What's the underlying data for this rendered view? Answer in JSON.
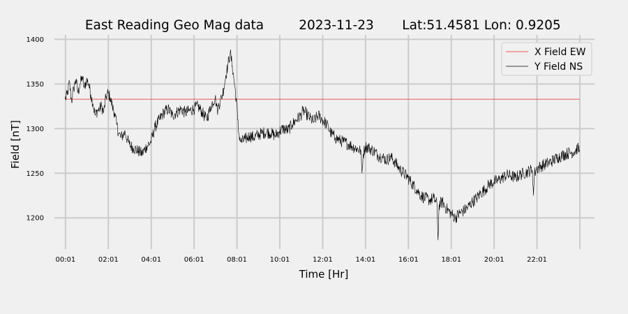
{
  "chart_data": {
    "type": "line",
    "title_parts": [
      "East Reading Geo Mag data",
      "2023-11-23",
      "Lat:51.4581  Lon: 0.9205"
    ],
    "xlabel": "Time  [Hr]",
    "ylabel": "Field  [nT]",
    "x_unit": "hours since 00:00",
    "xlim": [
      -0.5,
      24.7
    ],
    "ylim": [
      1165,
      1405
    ],
    "x_ticks": [
      {
        "x": 0.0167,
        "label": "00:01"
      },
      {
        "x": 2.0167,
        "label": "02:01"
      },
      {
        "x": 4.0167,
        "label": "04:01"
      },
      {
        "x": 6.0167,
        "label": "06:01"
      },
      {
        "x": 8.0167,
        "label": "08:01"
      },
      {
        "x": 10.0167,
        "label": "10:01"
      },
      {
        "x": 12.0167,
        "label": "12:01"
      },
      {
        "x": 14.0167,
        "label": "14:01"
      },
      {
        "x": 16.0167,
        "label": "16:01"
      },
      {
        "x": 18.0167,
        "label": "18:01"
      },
      {
        "x": 20.0167,
        "label": "20:01"
      },
      {
        "x": 22.0167,
        "label": "22:01"
      }
    ],
    "x_grid_extra": [
      24.0167
    ],
    "y_ticks": [
      1200,
      1250,
      1300,
      1350,
      1400
    ],
    "grid": true,
    "legend_position": "top-right",
    "series": [
      {
        "name": "X Field EW",
        "color": "#e8281e",
        "x": [
          0.0,
          24.0
        ],
        "values": [
          1333,
          1333
        ]
      },
      {
        "name": "Y Field NS",
        "color": "#000000",
        "x": [
          0.0,
          0.1,
          0.2,
          0.3,
          0.4,
          0.5,
          0.6,
          0.7,
          0.8,
          0.9,
          1.0,
          1.1,
          1.2,
          1.3,
          1.4,
          1.5,
          1.6,
          1.7,
          1.8,
          1.9,
          2.0,
          2.1,
          2.2,
          2.3,
          2.4,
          2.5,
          2.6,
          2.7,
          2.8,
          2.9,
          3.0,
          3.2,
          3.4,
          3.6,
          3.8,
          4.0,
          4.2,
          4.4,
          4.6,
          4.8,
          5.0,
          5.2,
          5.4,
          5.6,
          5.8,
          6.0,
          6.2,
          6.4,
          6.6,
          6.8,
          7.0,
          7.05,
          7.1,
          7.15,
          7.3,
          7.4,
          7.5,
          7.6,
          7.7,
          7.8,
          7.9,
          8.0,
          8.05,
          8.1,
          8.2,
          8.4,
          8.6,
          8.8,
          9.0,
          9.2,
          9.4,
          9.6,
          9.8,
          10.0,
          10.2,
          10.4,
          10.6,
          10.8,
          11.0,
          11.1,
          11.2,
          11.4,
          11.6,
          11.8,
          12.0,
          12.2,
          12.4,
          12.6,
          12.8,
          13.0,
          13.2,
          13.4,
          13.6,
          13.8,
          13.85,
          13.9,
          14.0,
          14.2,
          14.4,
          14.6,
          14.8,
          15.0,
          15.2,
          15.4,
          15.6,
          15.8,
          16.0,
          16.2,
          16.4,
          16.6,
          16.8,
          17.0,
          17.2,
          17.35,
          17.4,
          17.45,
          17.6,
          17.8,
          18.0,
          18.2,
          18.4,
          18.6,
          18.8,
          19.0,
          19.2,
          19.4,
          19.6,
          19.8,
          20.0,
          20.2,
          20.4,
          20.6,
          20.8,
          21.0,
          21.2,
          21.4,
          21.6,
          21.8,
          21.85,
          21.9,
          22.0,
          22.2,
          22.4,
          22.6,
          22.8,
          23.0,
          23.2,
          23.4,
          23.6,
          23.8,
          23.9,
          24.0
        ],
        "values": [
          1333,
          1338,
          1352,
          1330,
          1345,
          1355,
          1340,
          1350,
          1358,
          1345,
          1355,
          1350,
          1338,
          1328,
          1315,
          1320,
          1322,
          1325,
          1318,
          1335,
          1340,
          1335,
          1325,
          1318,
          1305,
          1295,
          1290,
          1293,
          1296,
          1288,
          1282,
          1278,
          1275,
          1272,
          1280,
          1285,
          1302,
          1310,
          1318,
          1322,
          1315,
          1318,
          1322,
          1318,
          1320,
          1322,
          1325,
          1318,
          1310,
          1325,
          1335,
          1328,
          1320,
          1325,
          1335,
          1345,
          1360,
          1372,
          1385,
          1370,
          1350,
          1330,
          1310,
          1295,
          1285,
          1288,
          1292,
          1290,
          1293,
          1295,
          1296,
          1295,
          1292,
          1297,
          1300,
          1298,
          1305,
          1310,
          1315,
          1320,
          1318,
          1312,
          1308,
          1315,
          1310,
          1305,
          1295,
          1290,
          1287,
          1285,
          1283,
          1280,
          1278,
          1275,
          1250,
          1270,
          1280,
          1278,
          1275,
          1270,
          1268,
          1265,
          1268,
          1262,
          1255,
          1250,
          1245,
          1238,
          1232,
          1225,
          1222,
          1220,
          1222,
          1215,
          1175,
          1215,
          1218,
          1210,
          1205,
          1200,
          1205,
          1208,
          1212,
          1218,
          1222,
          1228,
          1232,
          1238,
          1240,
          1242,
          1245,
          1248,
          1247,
          1245,
          1248,
          1250,
          1252,
          1254,
          1225,
          1250,
          1255,
          1258,
          1260,
          1262,
          1265,
          1268,
          1270,
          1272,
          1273,
          1275,
          1278,
          1276
        ]
      }
    ]
  }
}
